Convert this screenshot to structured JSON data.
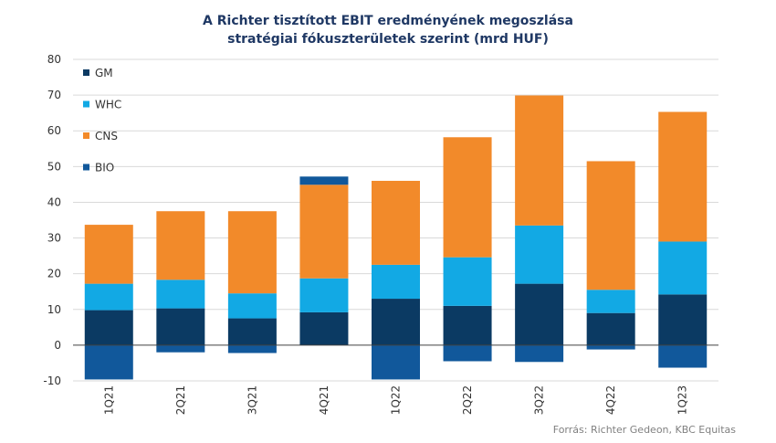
{
  "title_line1": "A Richter tisztított EBIT eredményének  megoszlása",
  "title_line2": "stratégiai fókuszterületek  szerint (mrd HUF)",
  "source": "Forrás: Richter Gedeon, KBC Equitas",
  "colors": {
    "GM": "#0b3a63",
    "WHC": "#12a9e4",
    "CNS": "#f28a2a",
    "BIO": "#11589b",
    "grid": "#d9d9d9",
    "axis": "#404040"
  },
  "chart_data": {
    "type": "bar",
    "stacked": true,
    "categories": [
      "1Q21",
      "2Q21",
      "3Q21",
      "4Q21",
      "1Q22",
      "2Q22",
      "3Q22",
      "4Q22",
      "1Q23"
    ],
    "series": [
      {
        "name": "GM",
        "values": [
          9.8,
          10.3,
          7.5,
          9.2,
          13.0,
          11.0,
          17.2,
          9.0,
          14.2
        ]
      },
      {
        "name": "WHC",
        "values": [
          7.4,
          8.0,
          7.0,
          9.5,
          9.5,
          13.6,
          16.3,
          6.5,
          14.8
        ]
      },
      {
        "name": "CNS",
        "values": [
          16.5,
          19.2,
          23.0,
          26.2,
          23.5,
          33.6,
          36.4,
          36.0,
          36.3
        ]
      },
      {
        "name": "BIO",
        "values": [
          -9.6,
          -2.0,
          -2.2,
          2.3,
          -9.6,
          -4.5,
          -4.7,
          -1.2,
          -6.3
        ]
      }
    ],
    "legend": [
      "GM",
      "WHC",
      "CNS",
      "BIO"
    ],
    "legend_placement": "top-left",
    "ylim": [
      -10,
      80
    ],
    "yticks": [
      -10,
      0,
      10,
      20,
      30,
      40,
      50,
      60,
      70,
      80
    ],
    "grid": true,
    "xlabel": "",
    "ylabel": ""
  }
}
